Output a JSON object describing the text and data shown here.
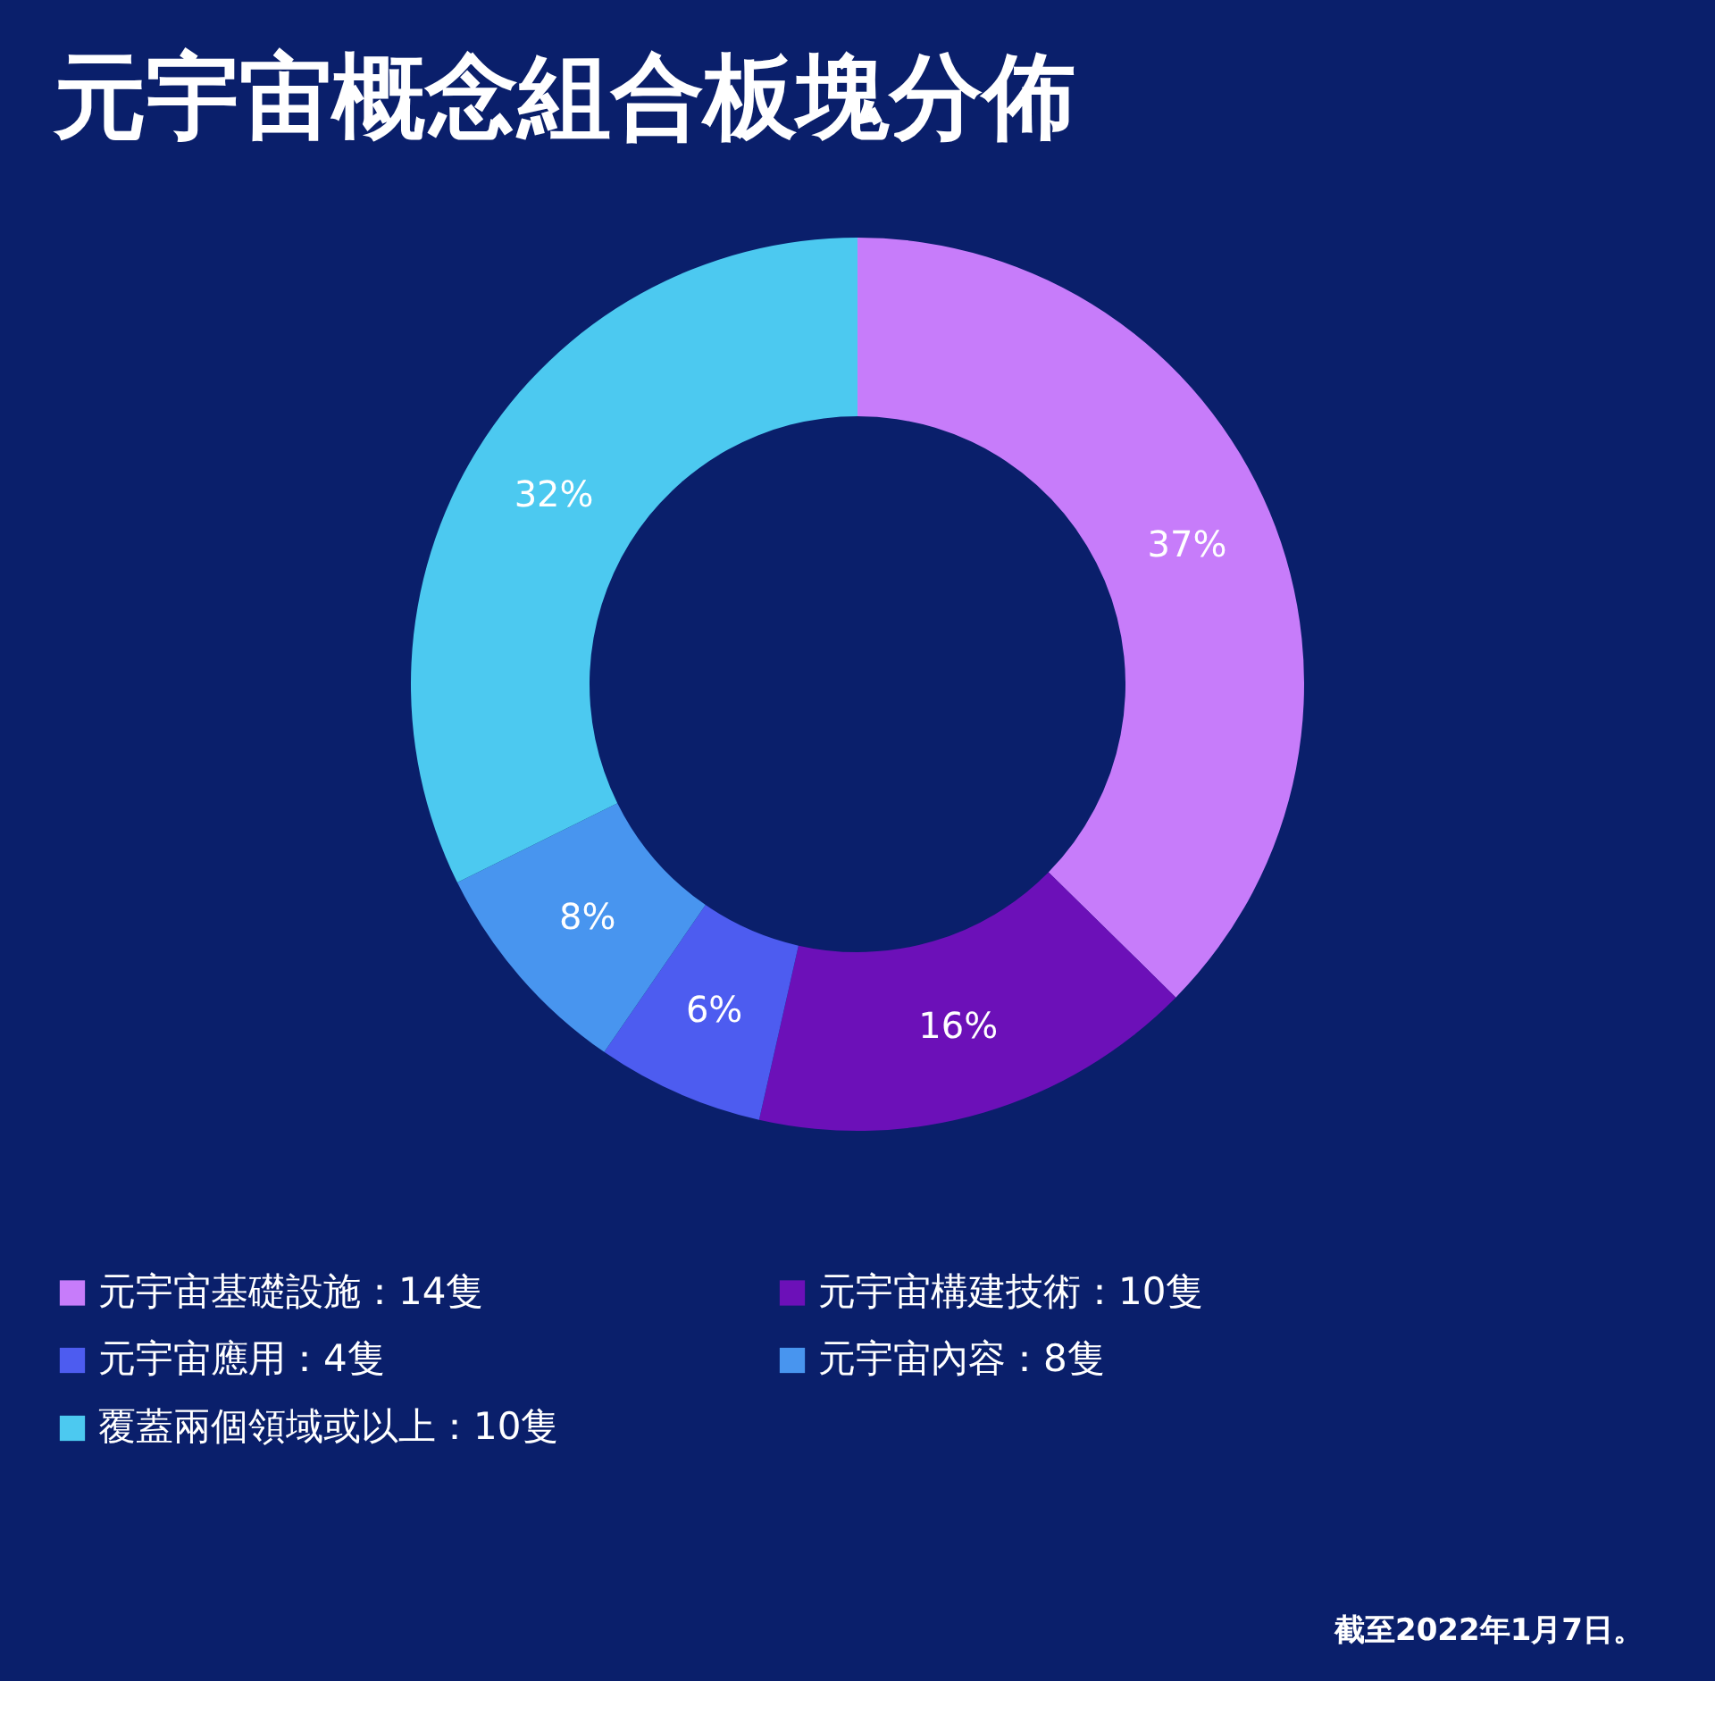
{
  "chart_data": {
    "type": "donut",
    "title": "元宇宙概念組合板塊分佈",
    "categories": [
      "元宇宙基礎設施：14隻",
      "元宇宙構建技術：10隻",
      "元宇宙應用：4隻",
      "元宇宙內容：8隻",
      "覆蓋兩個領域或以上：10隻"
    ],
    "values": [
      37,
      16,
      6,
      8,
      32
    ],
    "value_labels": [
      "37%",
      "16%",
      "6%",
      "8%",
      "32%"
    ],
    "colors": [
      "#c77cfa",
      "#6c10b8",
      "#4d5cf0",
      "#4895ef",
      "#4cc9f0"
    ],
    "legend": "bottom",
    "annotations": [
      "截至2022年1月7日。"
    ]
  }
}
